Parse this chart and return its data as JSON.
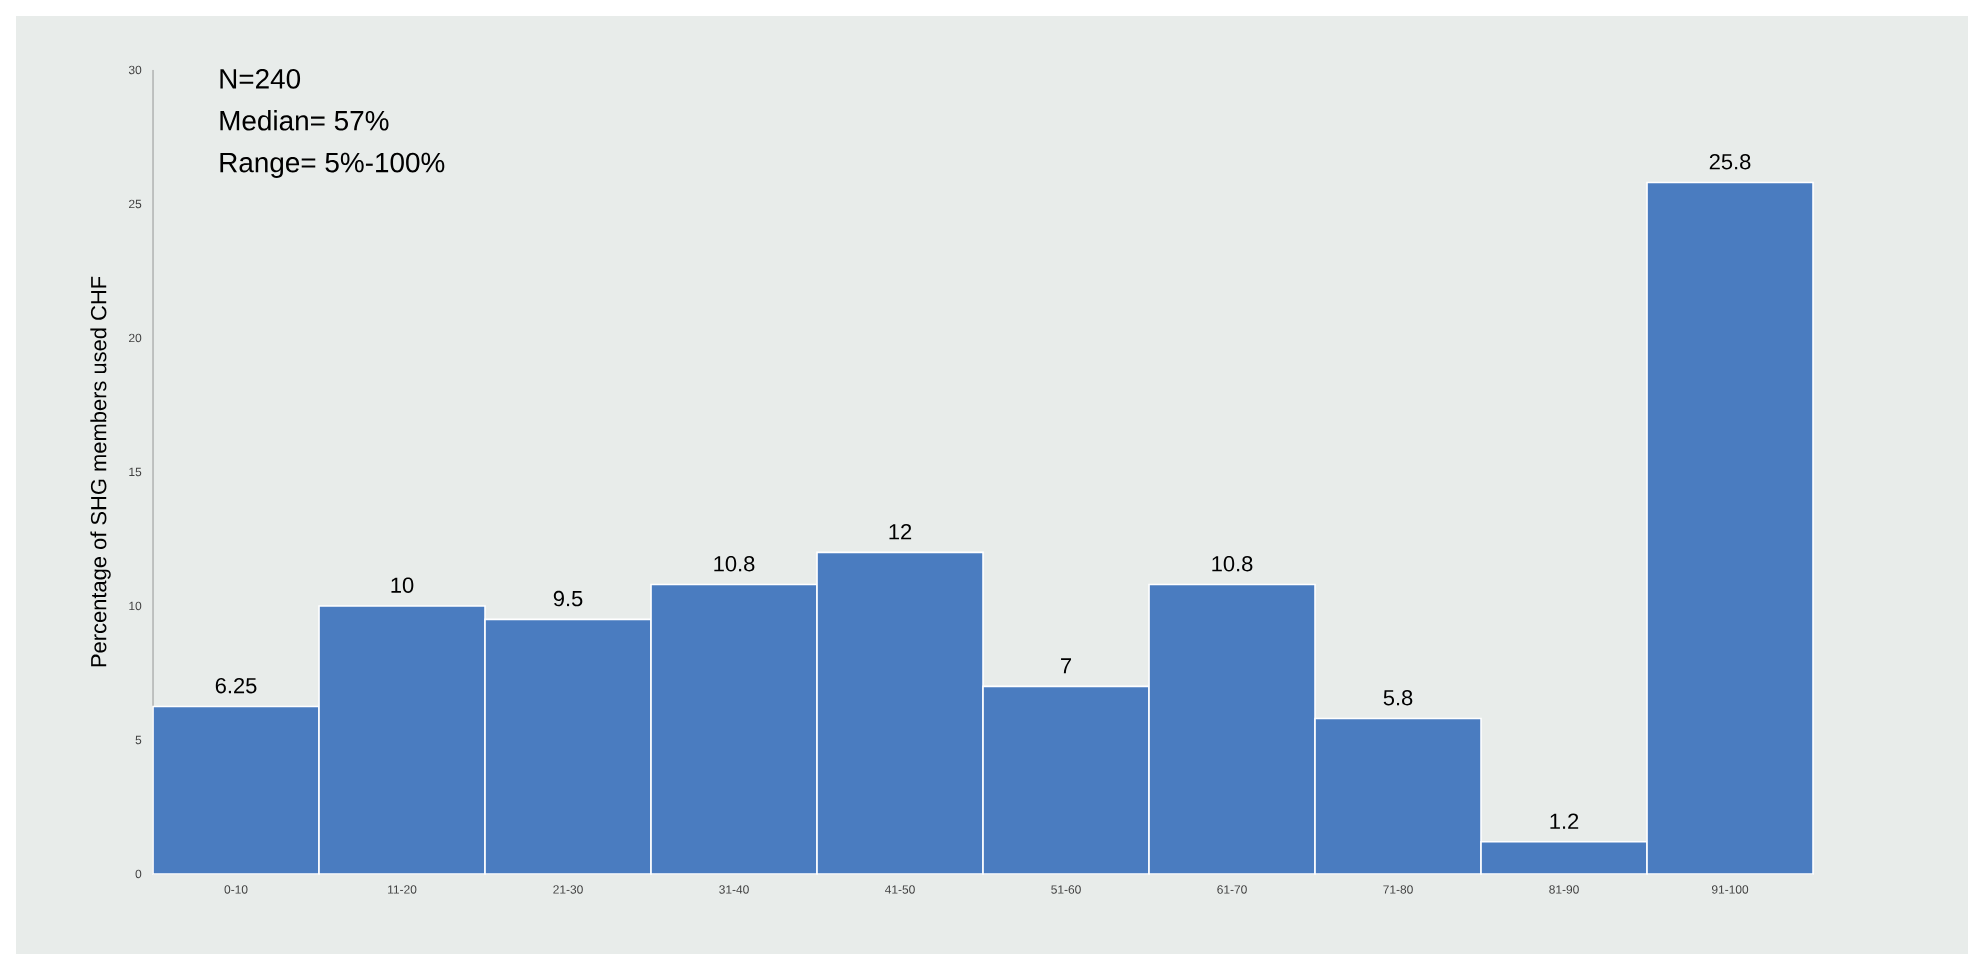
{
  "chart_data": {
    "type": "bar",
    "categories": [
      "0-10",
      "11-20",
      "21-30",
      "31-40",
      "41-50",
      "51-60",
      "61-70",
      "71-80",
      "81-90",
      "91-100"
    ],
    "values": [
      6.25,
      10,
      9.5,
      10.8,
      12,
      7,
      10.8,
      5.8,
      1.2,
      25.8
    ],
    "value_labels": [
      "6.25",
      "10",
      "9.5",
      "10.8",
      "12",
      "7",
      "10.8",
      "5.8",
      "1.2",
      "25.8"
    ],
    "color": "#4a7cc0",
    "ylabel": "Percentage of SHG members  used CHF",
    "ylim": [
      0,
      30
    ],
    "yticks": [
      0,
      5,
      10,
      15,
      20,
      25,
      30
    ],
    "annotations": [
      "N=240",
      "Median= 57%",
      "Range= 5%-100%"
    ],
    "grid": false
  }
}
